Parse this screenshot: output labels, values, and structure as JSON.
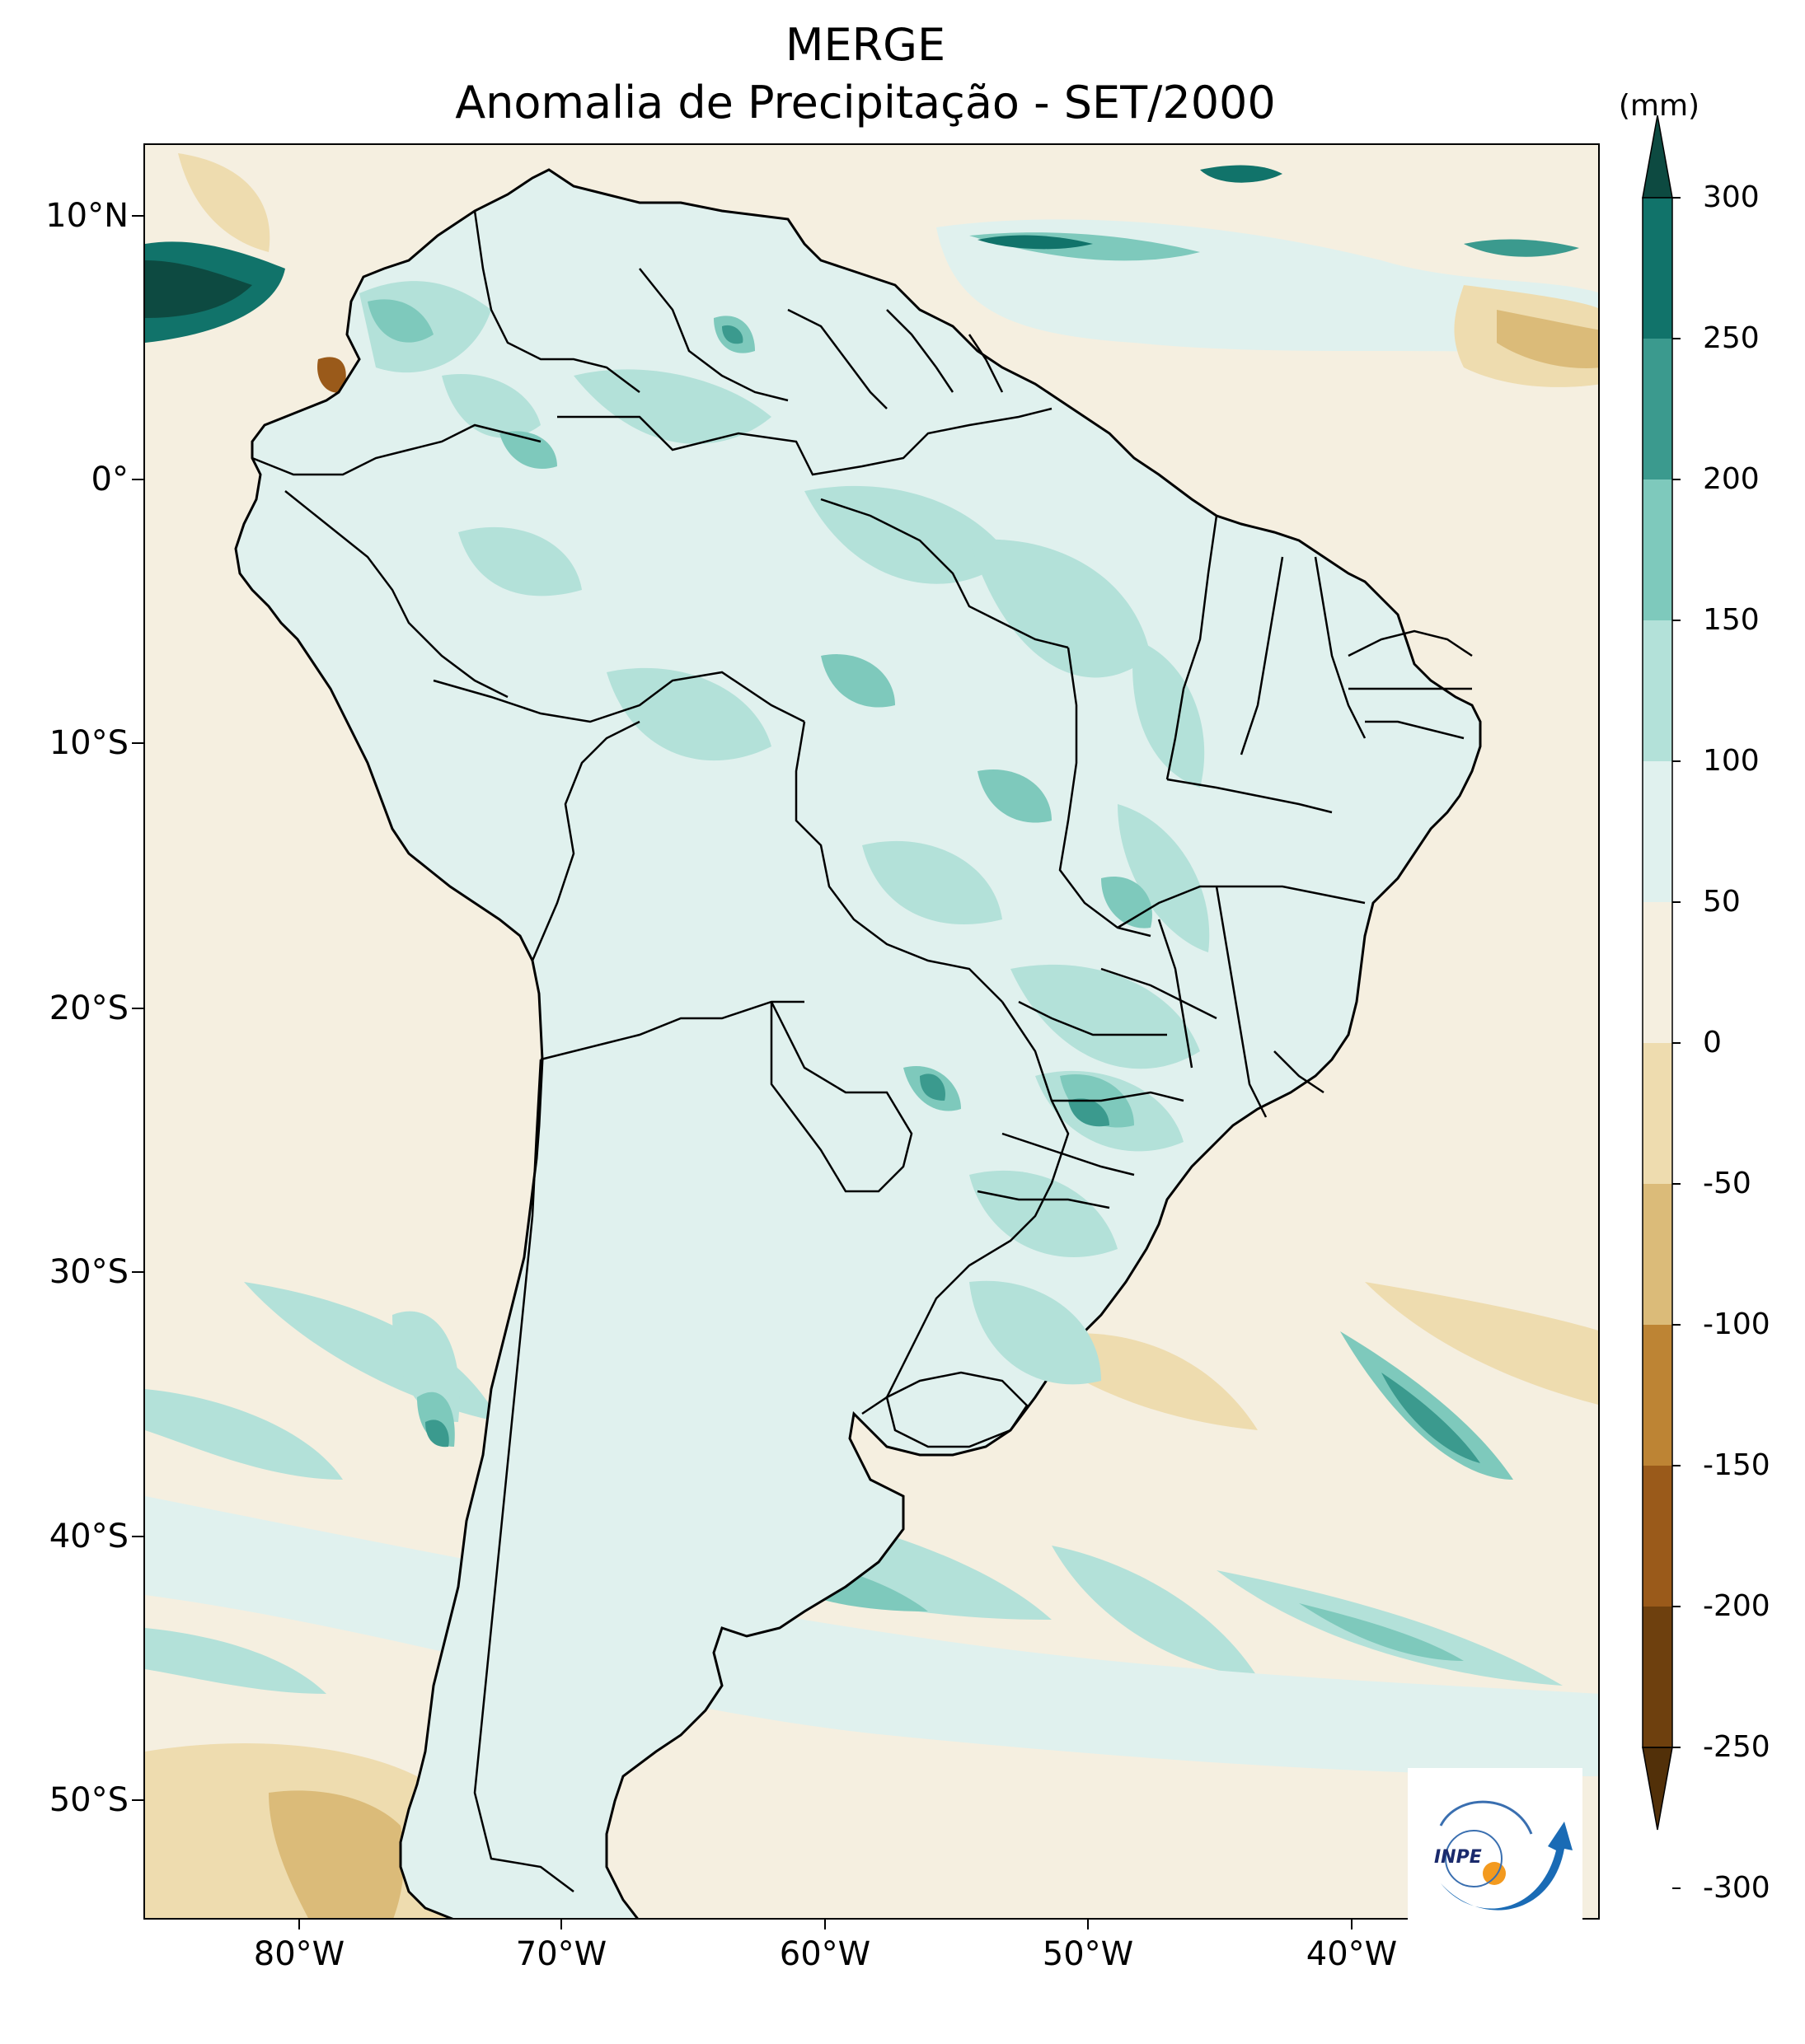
{
  "title": "MERGE",
  "subtitle": "Anomalia de Precipitação - SET/2000",
  "colorbar": {
    "unit": "(mm)",
    "levels": [
      -300,
      -250,
      -200,
      -150,
      -100,
      -50,
      0,
      50,
      100,
      150,
      200,
      250,
      300
    ],
    "labels": [
      "300",
      "250",
      "200",
      "150",
      "100",
      "50",
      "0",
      "-50",
      "-100",
      "-150",
      "-200",
      "-250",
      "-300"
    ],
    "colors_top_to_bottom": [
      "#0d4a41",
      "#11736a",
      "#3b9a8e",
      "#7ec9bc",
      "#b3e1d9",
      "#e0f1ee",
      "#f5efe0",
      "#eedcaf",
      "#dbbb79",
      "#bd8434",
      "#9a5a1a",
      "#6e400e",
      "#523009"
    ],
    "extend": "both"
  },
  "axes": {
    "lon_ticks": [
      "80°W",
      "70°W",
      "60°W",
      "50°W",
      "40°W"
    ],
    "lat_ticks": [
      "10°N",
      "0°",
      "10°S",
      "20°S",
      "30°S",
      "40°S",
      "50°S"
    ]
  },
  "map": {
    "region": "South America",
    "variable": "Precipitation anomaly",
    "lon_range": [
      -85,
      -30
    ],
    "lat_range": [
      -56,
      13
    ],
    "ocean_base_color": "#f5efe0",
    "land_base_color": "#e0f1ee"
  },
  "logo": {
    "text": "INPE"
  }
}
